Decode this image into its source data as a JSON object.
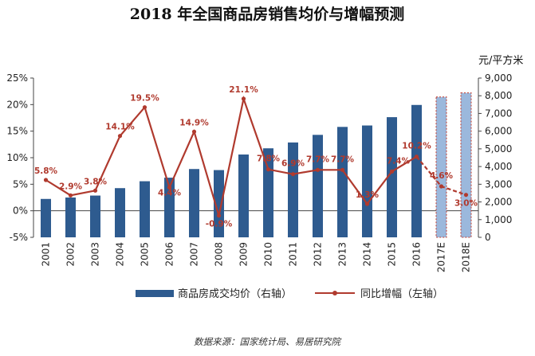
{
  "chart_data": {
    "type": "bar",
    "title": "2018 年全国商品房销售均价与增幅预测",
    "right_axis_unit": "元/平方米",
    "categories": [
      "2001",
      "2002",
      "2003",
      "2004",
      "2005",
      "2006",
      "2007",
      "2008",
      "2009",
      "2010",
      "2011",
      "2012",
      "2013",
      "2014",
      "2015",
      "2016",
      "2017E",
      "2018E"
    ],
    "category_labels": [
      "2001",
      "2002",
      "2003",
      "2004",
      "2005",
      "2006",
      "2007",
      "2008",
      "2009",
      "2010",
      "2011",
      "2012",
      "2013",
      "2014",
      "2015",
      "2016",
      "2017E",
      "2018E"
    ],
    "series": [
      {
        "name": "商品房成交均价（右轴）",
        "type": "bar",
        "axis": "right",
        "color": "#2e5b8f",
        "values": [
          2170,
          2250,
          2360,
          2780,
          3170,
          3370,
          3860,
          3800,
          4680,
          5030,
          5360,
          5790,
          6240,
          6320,
          6790,
          7480,
          7930,
          8160
        ],
        "estimated_from_index": 16,
        "estimated_fill": "#9bb8dc"
      },
      {
        "name": "同比增幅（左轴）",
        "type": "line",
        "axis": "left",
        "color": "#b03a2e",
        "values": [
          5.8,
          2.9,
          3.8,
          14.1,
          19.5,
          4.4,
          14.9,
          -0.9,
          21.1,
          7.8,
          6.9,
          7.7,
          7.7,
          1.3,
          7.4,
          10.2,
          4.6,
          3.0
        ],
        "labels": [
          "5.8%",
          "2.9%",
          "3.8%",
          "14.1%",
          "19.5%",
          "4.4%",
          "14.9%",
          "-0.9%",
          "21.1%",
          "7.8%",
          "6.9%",
          "7.7%",
          "7.7%",
          "1.3%",
          "7.4%",
          "10.2%",
          "4.6%",
          "3.0%"
        ],
        "estimated_from_index": 16
      }
    ],
    "y_left": {
      "min": -5,
      "max": 25,
      "ticks": [
        "-5%",
        "0%",
        "5%",
        "10%",
        "15%",
        "20%",
        "25%"
      ]
    },
    "y_right": {
      "min": 0,
      "max": 9000,
      "ticks": [
        "0",
        "1,000",
        "2,000",
        "3,000",
        "4,000",
        "5,000",
        "6,000",
        "7,000",
        "8,000",
        "9,000"
      ]
    },
    "legend": {
      "position": "bottom",
      "items": [
        "商品房成交均价（右轴）",
        "同比增幅（左轴）"
      ]
    },
    "source": "数据来源：国家统计局、易居研究院"
  }
}
